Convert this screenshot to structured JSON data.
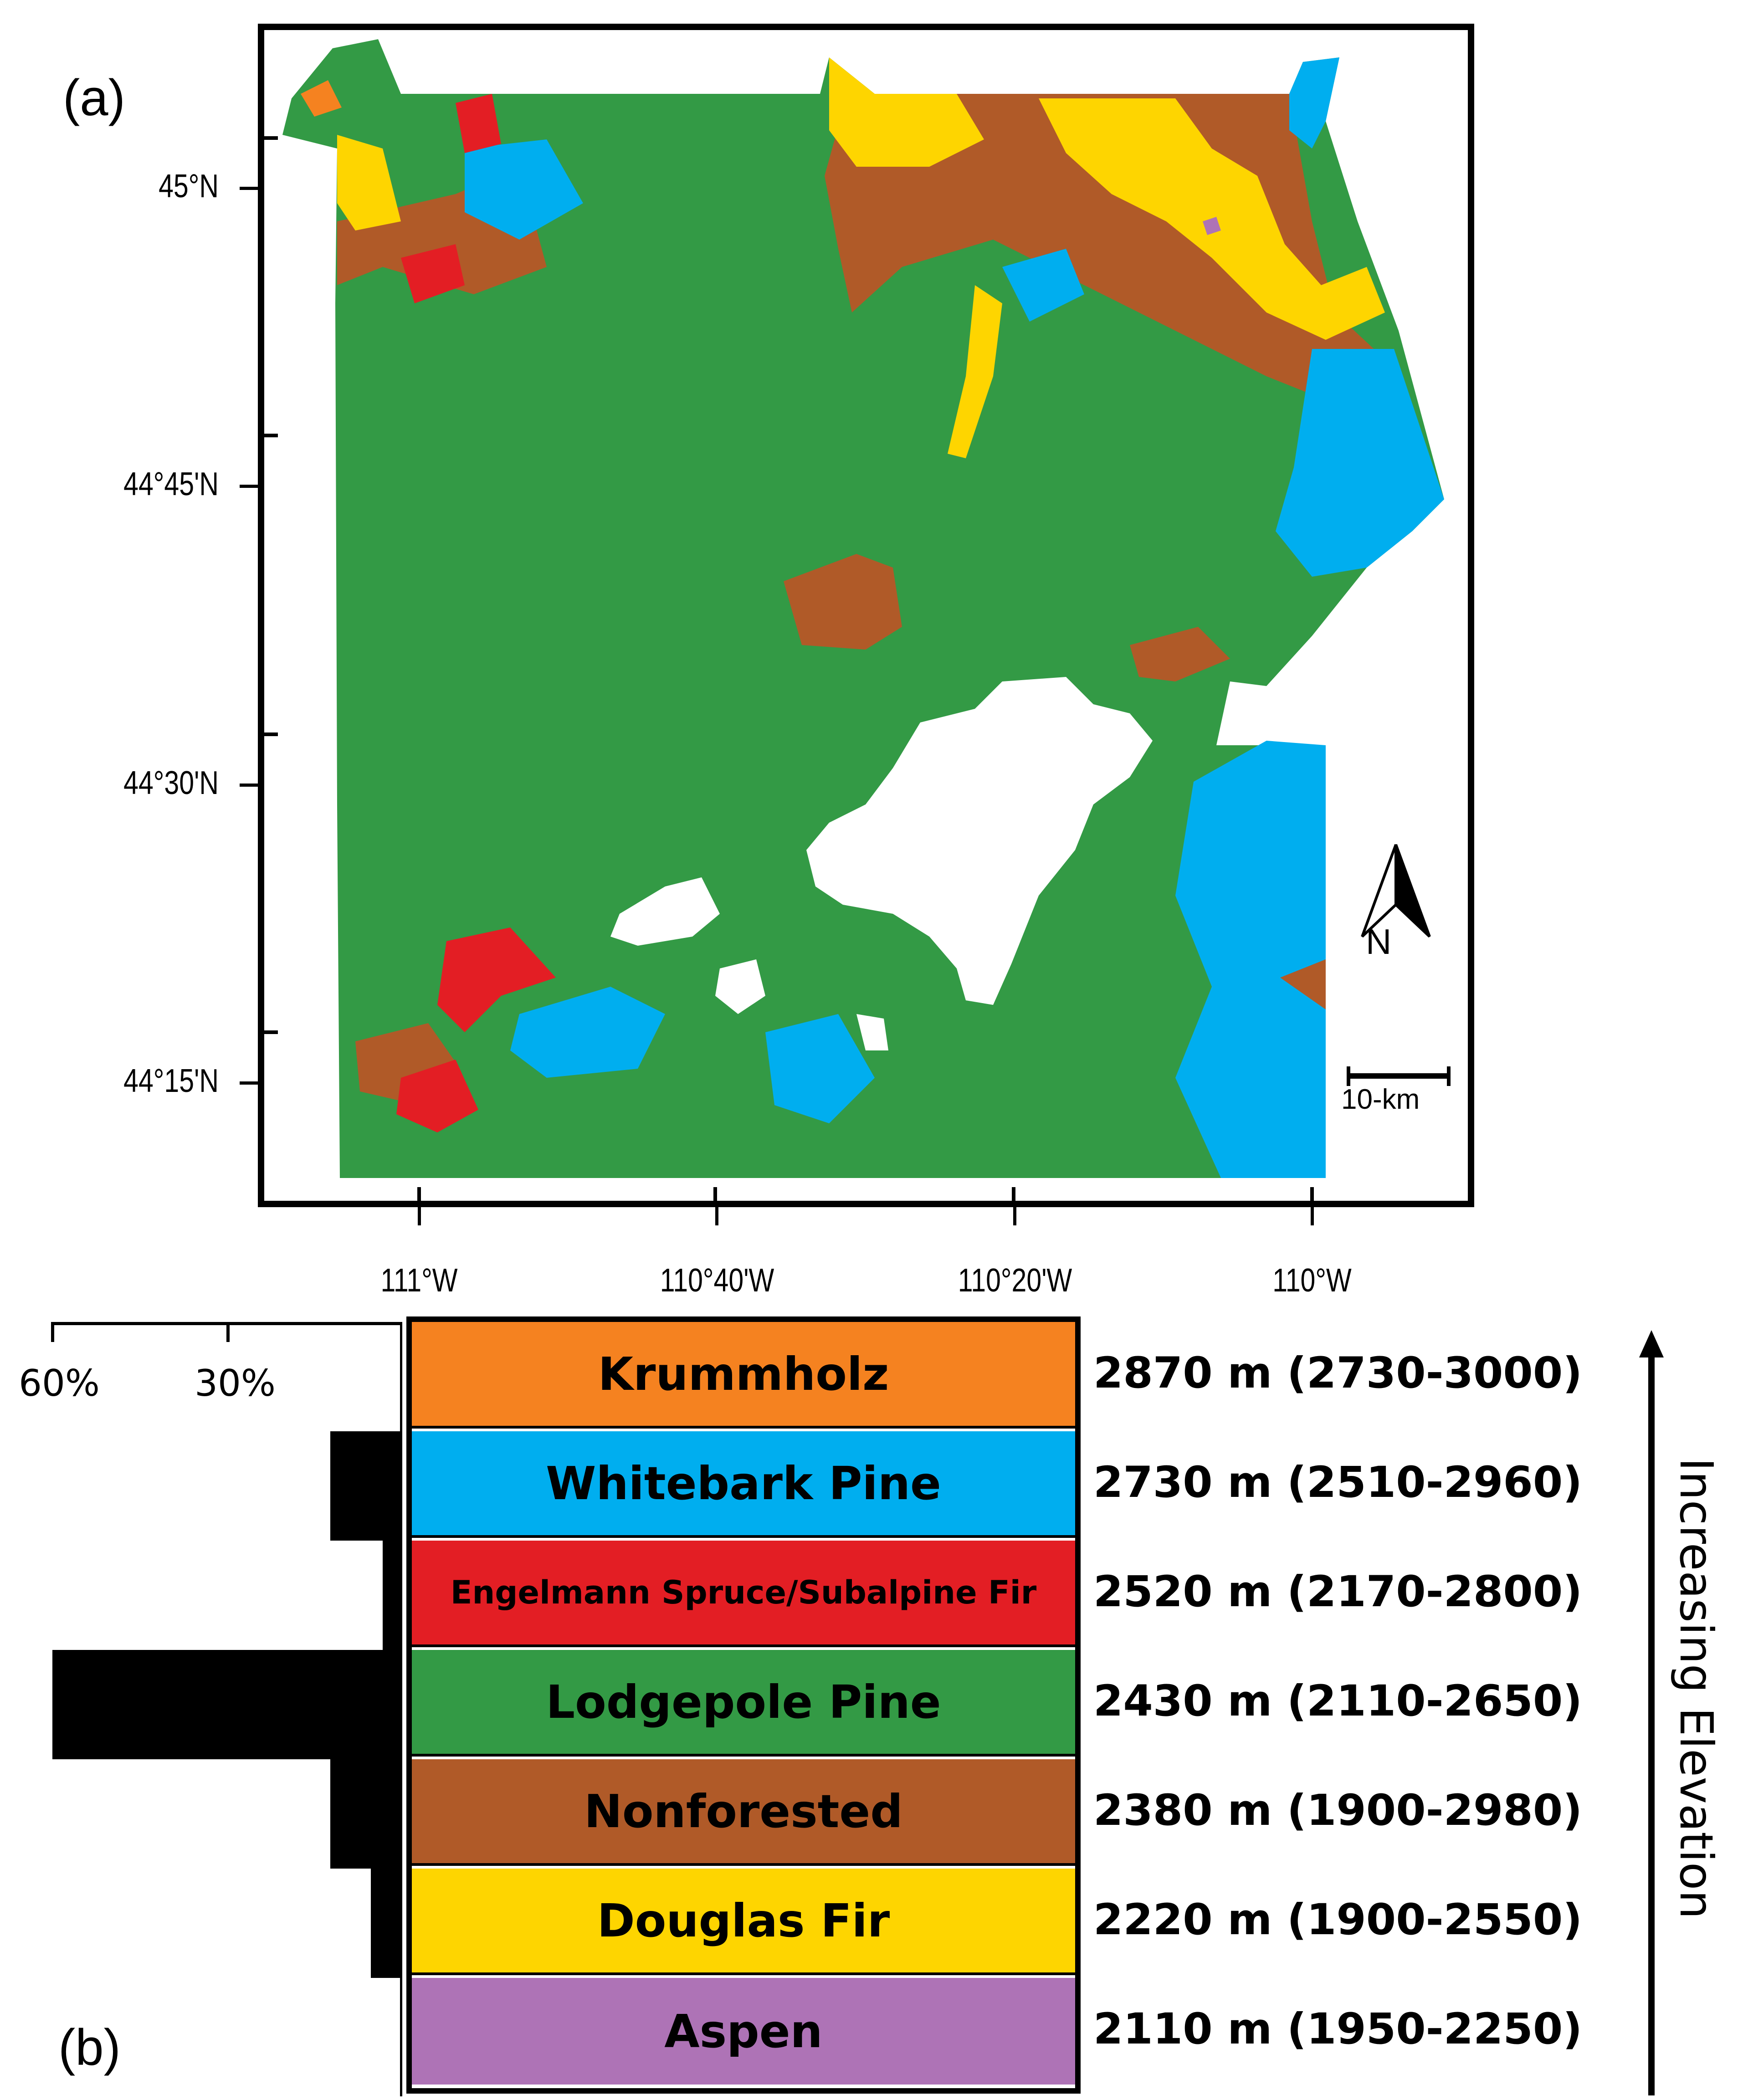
{
  "panels": {
    "a": "(a)",
    "b": "(b)"
  },
  "map": {
    "lat_labels": [
      "45°N",
      "44°45'N",
      "44°30'N",
      "44°15'N"
    ],
    "lon_labels": [
      "111°W",
      "110°40'W",
      "110°20'W",
      "110°W"
    ],
    "north_arrow_label": "N",
    "scale_bar_label": "10-km",
    "colors": {
      "krummholz": "#f58220",
      "whitebark_pine": "#00aeef",
      "engelmann_spruce_subalpine_fir": "#e31e24",
      "lodgepole_pine": "#339a45",
      "nonforested": "#b05a28",
      "douglas_fir": "#fed500",
      "aspen": "#ae73b6",
      "water": "#ffffff"
    }
  },
  "legend": {
    "axis_title": "Increasing Elevation",
    "histogram_tick_labels": [
      "60%",
      "30%"
    ],
    "histogram_axis_max_pct": 60,
    "rows": [
      {
        "name": "Krummholz",
        "color": "#f58220",
        "elevation": "2870 m (2730-3000)",
        "share_pct": 0
      },
      {
        "name": "Whitebark Pine",
        "color": "#00aeef",
        "elevation": "2730 m (2510-2960)",
        "share_pct": 12
      },
      {
        "name": "Engelmann Spruce/Subalpine Fir",
        "color": "#e31e24",
        "elevation": "2520 m (2170-2800)",
        "share_pct": 3
      },
      {
        "name": "Lodgepole Pine",
        "color": "#339a45",
        "elevation": "2430 m (2110-2650)",
        "share_pct": 60
      },
      {
        "name": "Nonforested",
        "color": "#b05a28",
        "elevation": "2380 m (1900-2980)",
        "share_pct": 12
      },
      {
        "name": "Douglas Fir",
        "color": "#fed500",
        "elevation": "2220 m (1900-2550)",
        "share_pct": 5
      },
      {
        "name": "Aspen",
        "color": "#ae73b6",
        "elevation": "2110 m (1950-2250)",
        "share_pct": 0
      }
    ]
  }
}
